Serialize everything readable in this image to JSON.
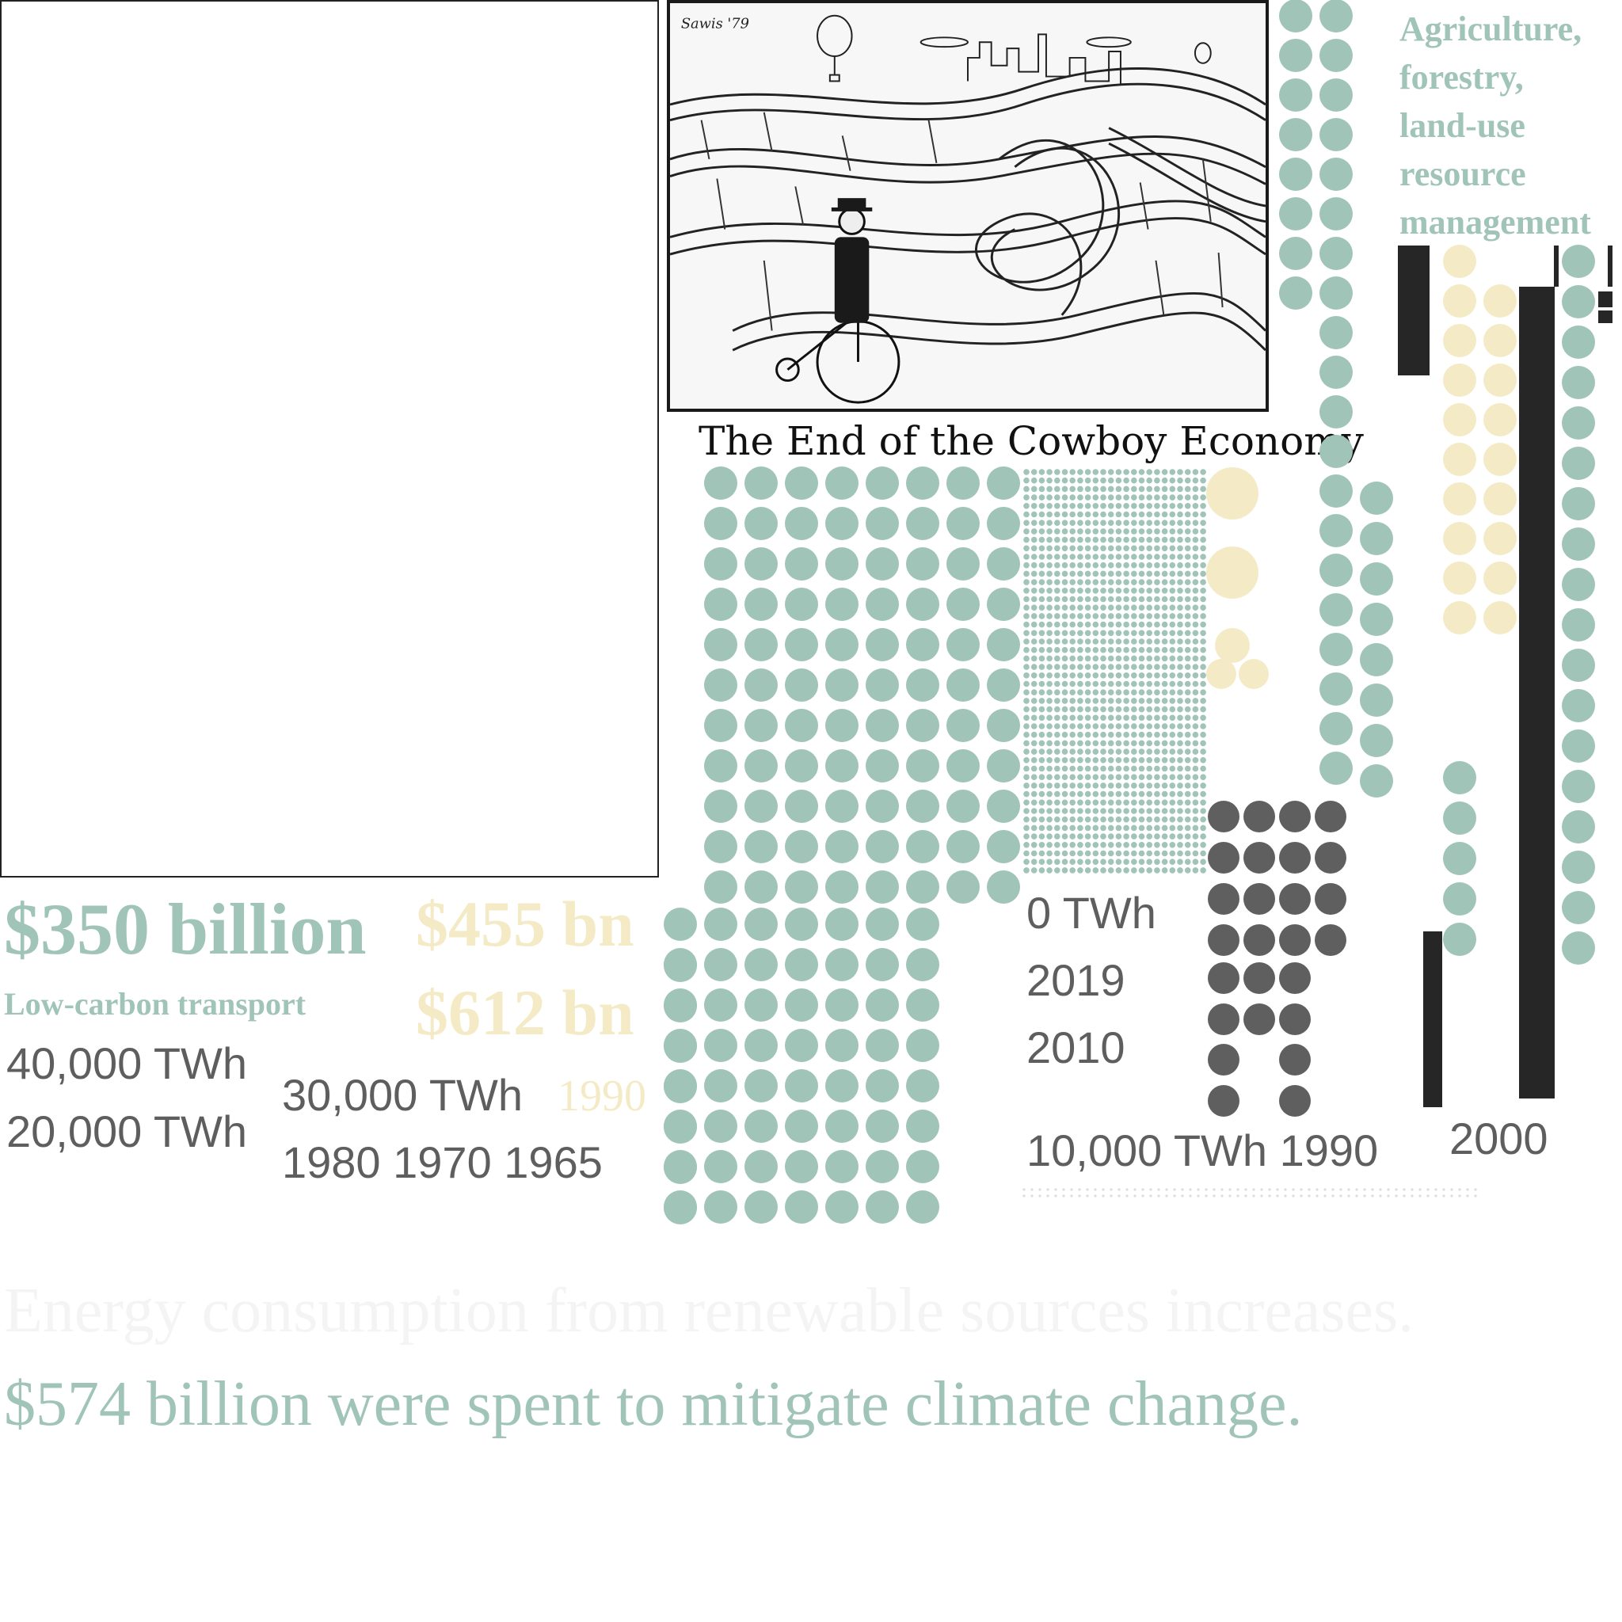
{
  "colors": {
    "sage": "#a0c4b8",
    "cream": "#f4ebc6",
    "dark": "#5f5f5f",
    "black": "#262626",
    "grey_text": "#5e5e5e",
    "ghost": "#f4f4f4"
  },
  "cartoon": {
    "signature": "Sawis '79",
    "caption": "The End of the Cowboy Economy"
  },
  "labels": {
    "agri": [
      "Agriculture,",
      "forestry,",
      "land-use",
      "resource",
      "management"
    ],
    "money_350": "$350 billion",
    "money_455": "$455 bn",
    "money_612": "$612 bn",
    "low_carbon": "Low-carbon transport",
    "twh_40000": "40,000 TWh",
    "twh_20000": "20,000 TWh",
    "twh_30000": "30,000 TWh",
    "year_1990_cream": "1990",
    "years_row": "1980 1970 1965",
    "twh_0": "0 TWh",
    "year_2019": "2019",
    "year_2010": "2010",
    "twh_10000_row": "10,000 TWh 1990",
    "year_2000": "2000",
    "headline_ghost": "Energy consumption from renewable sources increases.",
    "headline_main": "$574 billion were spent to mitigate climate change."
  }
}
